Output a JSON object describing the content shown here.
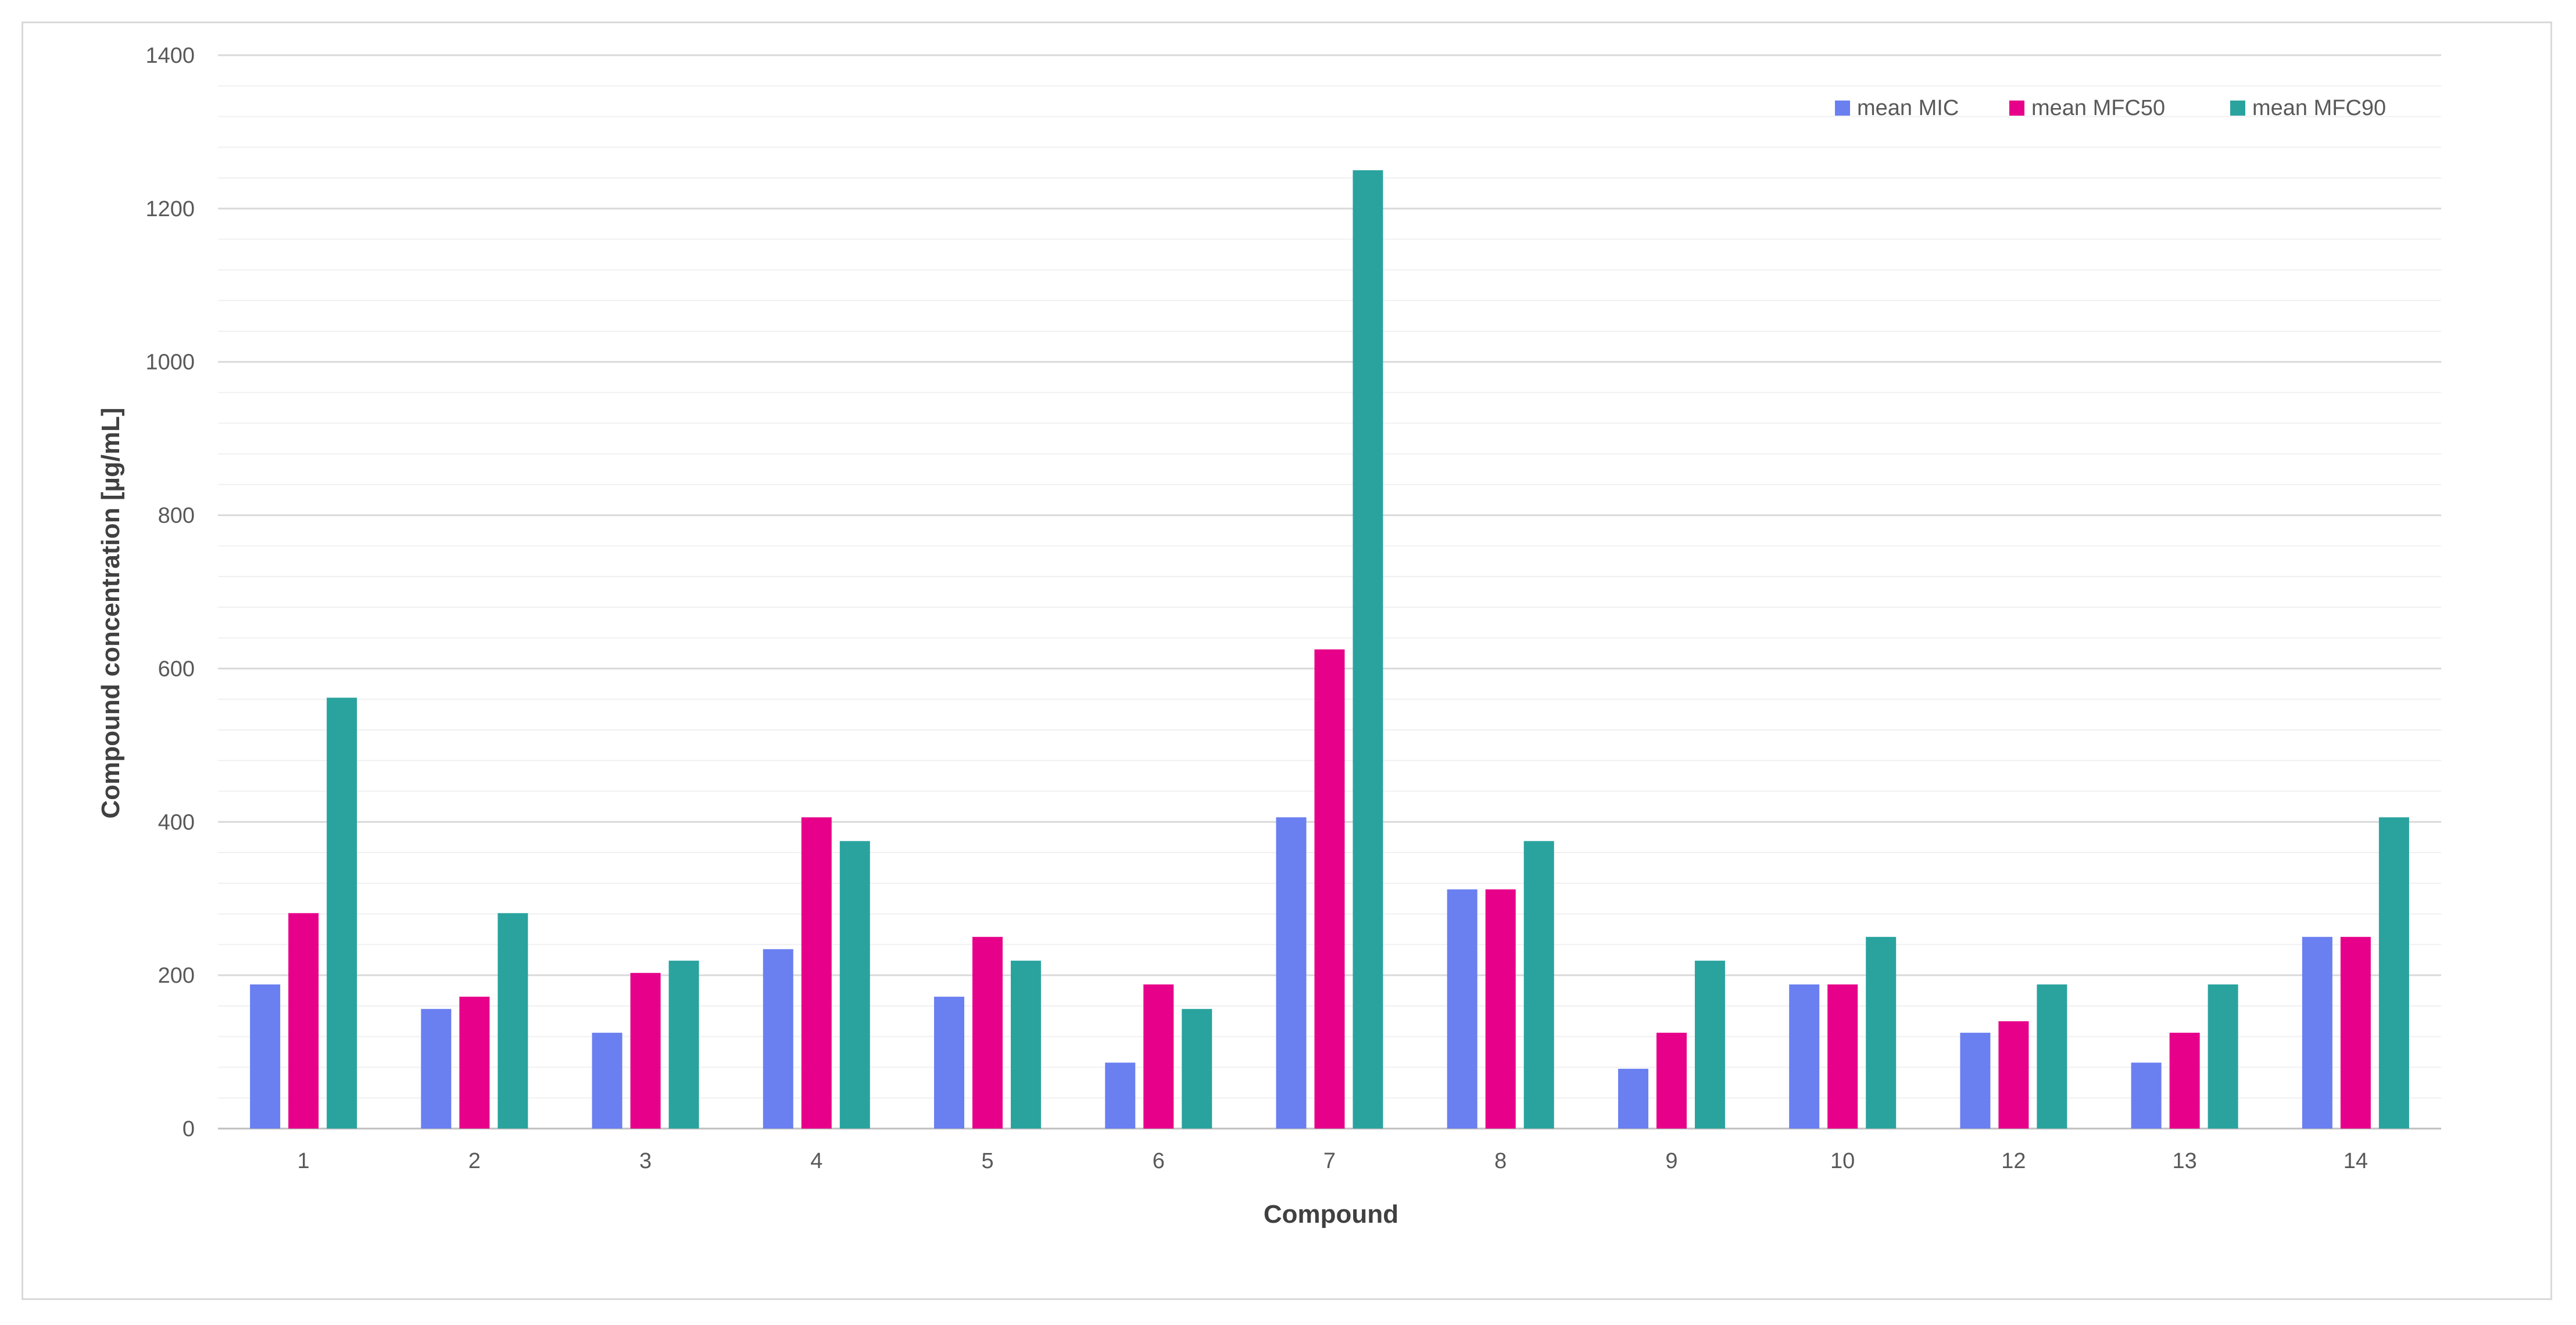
{
  "chart_data": {
    "type": "bar",
    "title": "",
    "xlabel": "Compound",
    "ylabel": "Compound concentration [µg/mL]",
    "ylim": [
      0,
      1400
    ],
    "major_tick_step": 200,
    "minor_tick_step": 40,
    "yticks": [
      "0",
      "200",
      "400",
      "600",
      "800",
      "1000",
      "1200",
      "1400"
    ],
    "categories": [
      "1",
      "2",
      "3",
      "4",
      "5",
      "6",
      "7",
      "8",
      "9",
      "10",
      "12",
      "13",
      "14"
    ],
    "series": [
      {
        "name": "mean MIC",
        "color": "#6a7ff0",
        "values": [
          188,
          156,
          125,
          234,
          172,
          86,
          406,
          312,
          78,
          188,
          125,
          86,
          250
        ]
      },
      {
        "name": "mean MFC50",
        "color": "#e6008a",
        "values": [
          281,
          172,
          203,
          406,
          250,
          188,
          625,
          312,
          125,
          188,
          140,
          125,
          250
        ]
      },
      {
        "name": "mean MFC90",
        "color": "#2aa39f",
        "values": [
          562,
          281,
          219,
          375,
          219,
          156,
          1250,
          375,
          219,
          250,
          188,
          188,
          406
        ]
      }
    ],
    "grid": true,
    "legend_position": "top-right"
  }
}
